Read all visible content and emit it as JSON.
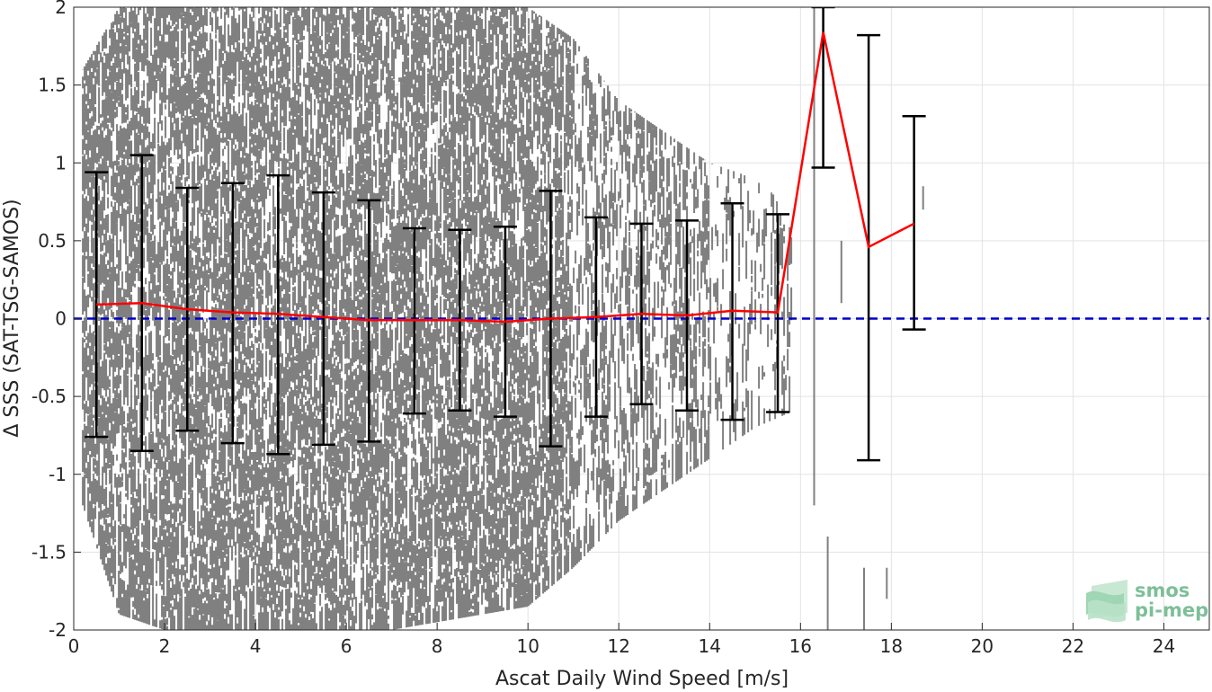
{
  "chart_data": {
    "type": "scatter",
    "title": "",
    "xlabel": "Ascat Daily Wind Speed [m/s]",
    "ylabel": "Δ SSS (SAT-TSG-SAMOS)",
    "xlim": [
      0,
      25
    ],
    "ylim": [
      -2,
      2
    ],
    "x_ticks": [
      0,
      2,
      4,
      6,
      8,
      10,
      12,
      14,
      16,
      18,
      20,
      22,
      24
    ],
    "y_ticks": [
      -2,
      -1.5,
      -1,
      -0.5,
      0,
      0.5,
      1,
      1.5,
      2
    ],
    "y_tick_labels": [
      "-2",
      "-1.5",
      "-1",
      "-0.5",
      "0",
      "0.5",
      "1",
      "1.5",
      "2"
    ],
    "grid": true,
    "reference_line": {
      "y": 0,
      "color": "#0000cc",
      "style": "dashed"
    },
    "scatter_color": "#808080",
    "mean_line_color": "#ff0000",
    "errorbar_color": "#000000",
    "binned_stats": {
      "x": [
        0.5,
        1.5,
        2.5,
        3.5,
        4.5,
        5.5,
        6.5,
        7.5,
        8.5,
        9.5,
        10.5,
        11.5,
        12.5,
        13.5,
        14.5,
        15.5,
        16.5,
        17.5,
        18.5
      ],
      "mean": [
        0.09,
        0.1,
        0.06,
        0.04,
        0.03,
        0.01,
        -0.01,
        -0.01,
        -0.01,
        -0.02,
        0.0,
        0.01,
        0.03,
        0.02,
        0.05,
        0.04,
        1.84,
        0.46,
        0.61
      ],
      "upper": [
        0.94,
        1.05,
        0.84,
        0.87,
        0.92,
        0.81,
        0.76,
        0.58,
        0.57,
        0.59,
        0.82,
        0.65,
        0.61,
        0.63,
        0.74,
        0.67,
        2.0,
        1.82,
        1.3
      ],
      "lower": [
        -0.76,
        -0.85,
        -0.72,
        -0.8,
        -0.87,
        -0.81,
        -0.79,
        -0.61,
        -0.59,
        -0.63,
        -0.82,
        -0.63,
        -0.55,
        -0.59,
        -0.65,
        -0.6,
        0.97,
        -0.91,
        -0.07
      ]
    },
    "scatter_envelope": {
      "x": [
        0.2,
        1,
        2,
        3,
        4,
        5,
        6,
        7,
        8,
        9,
        10,
        11,
        12,
        13,
        14,
        15,
        15.8
      ],
      "top": [
        1.6,
        2.0,
        2.0,
        2.0,
        2.0,
        2.0,
        2.0,
        2.0,
        2.0,
        2.0,
        2.0,
        1.8,
        1.4,
        1.2,
        1.0,
        0.9,
        0.7
      ],
      "bot": [
        -1.2,
        -1.9,
        -2.0,
        -2.0,
        -2.0,
        -2.0,
        -2.0,
        -2.0,
        -1.95,
        -1.9,
        -1.85,
        -1.6,
        -1.3,
        -1.1,
        -0.9,
        -0.7,
        -0.6
      ]
    }
  },
  "logo": {
    "line1": "smos",
    "line2": "pi-mep",
    "color": "#7dbf98"
  }
}
